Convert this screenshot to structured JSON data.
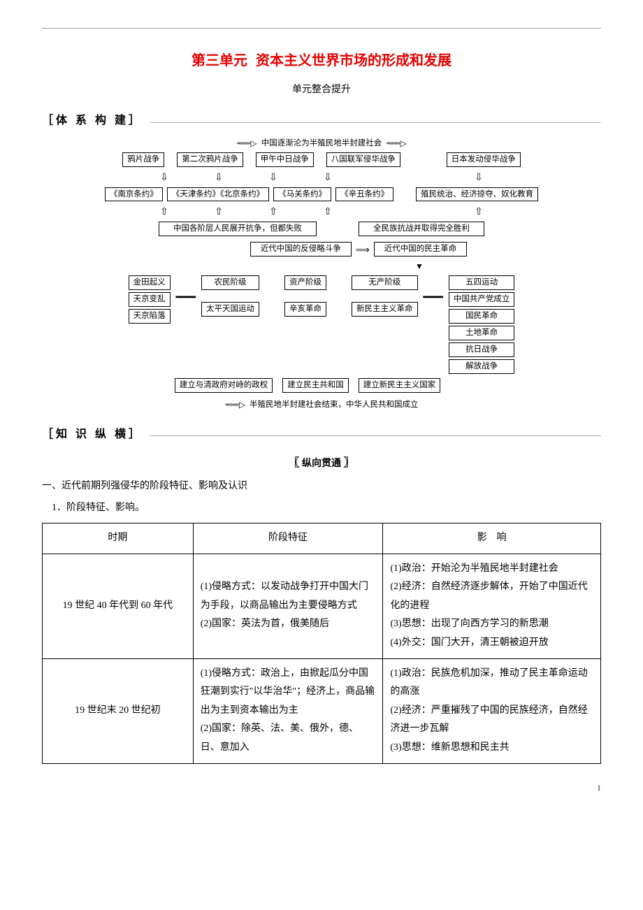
{
  "colors": {
    "title_red": "#e60000",
    "text": "#000000",
    "rule": "#999999",
    "border": "#000000"
  },
  "typography": {
    "body_font": "SimSun",
    "diagram_font": "SimHei",
    "body_size_pt": 14,
    "diagram_size_pt": 12,
    "title_size_pt": 20
  },
  "title": {
    "unit": "第三单元",
    "main": "资本主义世界市场的形成和发展"
  },
  "subtitle": "单元整合提升",
  "sections": {
    "s1": "［体 系 构 建］",
    "s2": "［知 识 纵 横］"
  },
  "diagram": {
    "top_flow": "中国逐渐沦为半殖民地半封建社会",
    "wars": [
      "鸦片战争",
      "第二次鸦片战争",
      "甲午中日战争",
      "八国联军侵华战争",
      "日本发动侵华战争"
    ],
    "treaties": [
      "《南京条约》",
      "《天津条约》《北京条约》",
      "《马关条约》",
      "《辛丑条约》",
      "殖民统治、经济掠夺、奴化教育"
    ],
    "resist_left": "中国各阶层人民展开抗争，但都失败",
    "resist_right": "全民族抗战并取得完全胜利",
    "mid_left": "近代中国的反侵略斗争",
    "mid_right": "近代中国的民主革命",
    "classes": [
      "农民阶级",
      "资产阶级",
      "无产阶级"
    ],
    "col_jintiants": [
      "金田起义",
      "天京变乱",
      "天京陷落"
    ],
    "taiping": "太平天国运动",
    "xinhai": "辛亥革命",
    "xinmin": "新民主主义革命",
    "right_events": [
      "五四运动",
      "中国共产党成立",
      "国民革命",
      "土地革命",
      "抗日战争",
      "解放战争"
    ],
    "bottom_row": [
      "建立与清政府对峙的政权",
      "建立民主共和国",
      "建立新民主主义国家"
    ],
    "bottom_flow": "半殖民地半封建社会结束，中华人民共和国成立"
  },
  "sub_pill": "纵向贯通",
  "heading1": "一、近代前期列强侵华的阶段特征、影响及认识",
  "heading2": "1．阶段特征、影响。",
  "table": {
    "headers": [
      "时期",
      "阶段特征",
      "影　响"
    ],
    "rows": [
      {
        "period": "19 世纪 40 年代到 60 年代",
        "features": "(1)侵略方式：以发动战争打开中国大门为手段，以商品输出为主要侵略方式\n(2)国家：英法为首，俄美随后",
        "impact": "(1)政治：开始沦为半殖民地半封建社会\n(2)经济：自然经济逐步解体，开始了中国近代化的进程\n(3)思想：出现了向西方学习的新思潮\n(4)外交：国门大开，清王朝被迫开放"
      },
      {
        "period": "19 世纪末 20 世纪初",
        "features": "(1)侵略方式：政治上，由掀起瓜分中国狂潮到实行\"以华治华\"；经济上，商品输出为主到资本输出为主\n(2)国家：除英、法、美、俄外，德、日、意加入",
        "impact": "(1)政治：民族危机加深，推动了民主革命运动的高涨\n(2)经济：严重摧残了中国的民族经济，自然经济进一步瓦解\n(3)思想：维新思想和民主共"
      }
    ]
  },
  "pagenum": "1"
}
